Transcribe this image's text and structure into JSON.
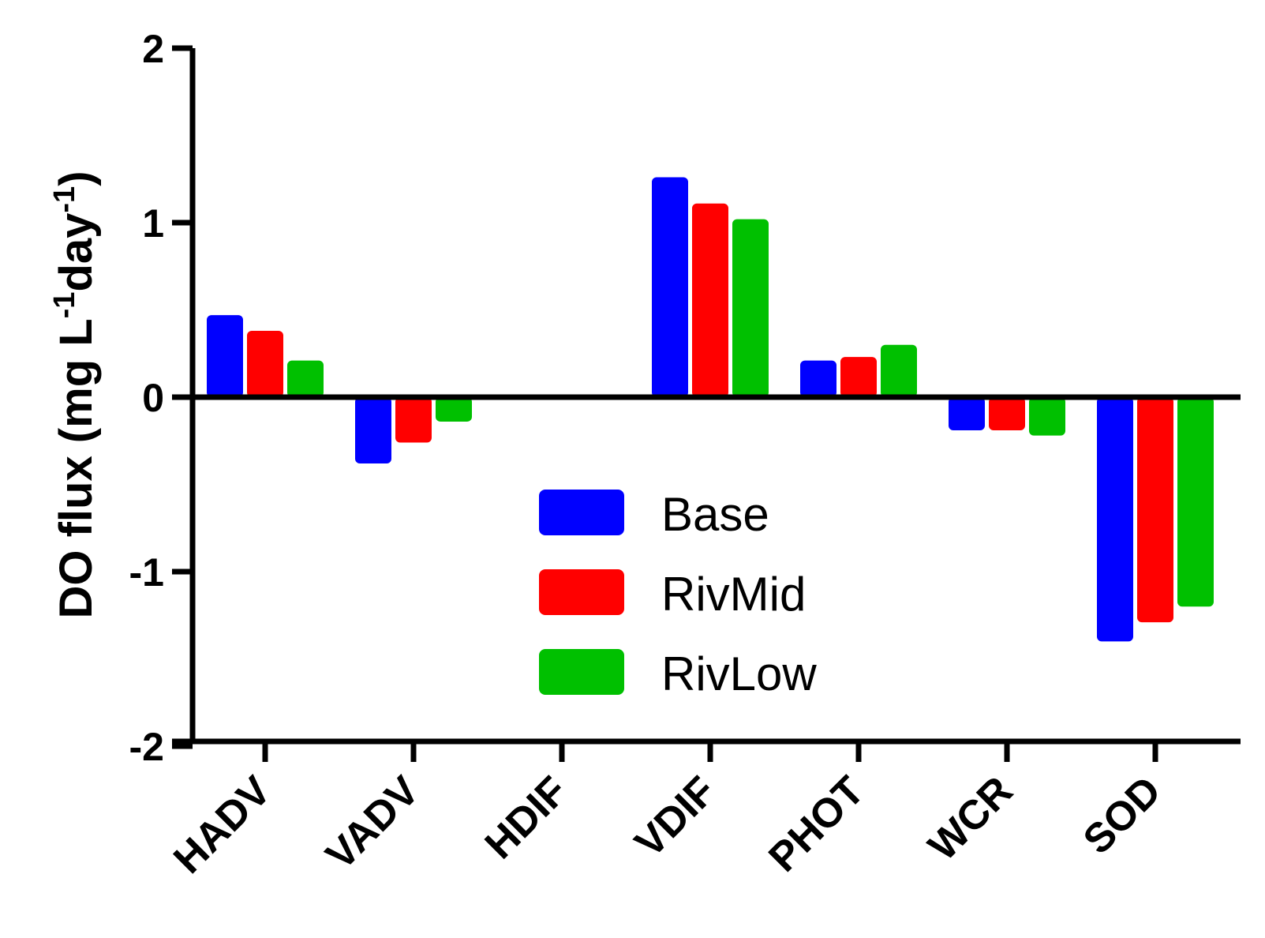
{
  "chart_data": {
    "type": "bar",
    "title": "",
    "xlabel": "",
    "ylabel": "DO flux (mg L",
    "ylabel_sup1": "-1",
    "ylabel_mid": "day",
    "ylabel_sup2": "-1",
    "ylabel_end": ")",
    "ylim": [
      -2,
      2
    ],
    "yticks": [
      2,
      1,
      0,
      -1,
      -2
    ],
    "ytick_labels": [
      "2",
      "1",
      "0",
      "-1",
      "-2"
    ],
    "categories": [
      "HADV",
      "VADV",
      "HDIF",
      "VDIF",
      "PHOT",
      "WCR",
      "SOD"
    ],
    "series": [
      {
        "name": "Base",
        "color": "#0000ff",
        "values": [
          0.47,
          -0.38,
          0.0,
          1.26,
          0.21,
          -0.19,
          -1.4
        ]
      },
      {
        "name": "RivMid",
        "color": "#ff0000",
        "values": [
          0.38,
          -0.26,
          0.0,
          1.11,
          0.23,
          -0.19,
          -1.29
        ]
      },
      {
        "name": "RivLow",
        "color": "#00c000",
        "values": [
          0.21,
          -0.14,
          0.0,
          1.02,
          0.3,
          -0.22,
          -1.2
        ]
      }
    ],
    "legend": {
      "placement": "center-bottom"
    },
    "grid": false
  }
}
